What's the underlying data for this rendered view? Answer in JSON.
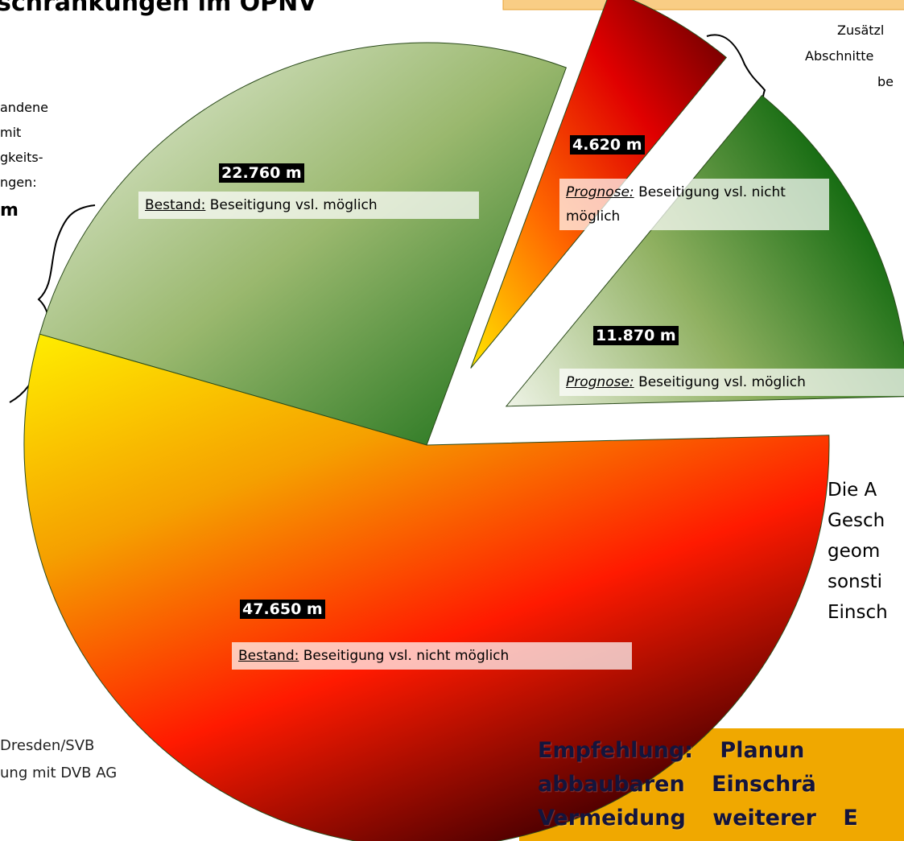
{
  "title": "schränkungen im ÖPNV",
  "left_note": [
    "andene",
    "mit",
    "gkeits-",
    "ngen:"
  ],
  "left_note_total": "m",
  "top_right_note": [
    "Zusätzl",
    "Abschnitte",
    "be"
  ],
  "right_note": [
    "Die A",
    "Gesch",
    "geom",
    "sonsti",
    "Einsch"
  ],
  "source_note": [
    "Dresden/SVB",
    "ung mit DVB AG"
  ],
  "recommendation": [
    "Empfehlung: Planun",
    "abbaubaren Einschrä",
    "Vermeidung weiterer E"
  ],
  "chart_data": {
    "type": "pie",
    "values": [
      22760,
      4620,
      11870,
      47650
    ],
    "value_labels": [
      "22.760 m",
      "4.620 m",
      "11.870 m",
      "47.650 m"
    ],
    "label_prefixes": [
      "Bestand:",
      "Prognose:",
      "Prognose:",
      "Bestand:"
    ],
    "categories": [
      "Beseitigung vsl. möglich",
      "Beseitigung vsl. nicht möglich",
      "Beseitigung vsl. möglich",
      "Beseitigung vsl. nicht möglich"
    ],
    "prefix_italic": [
      false,
      true,
      true,
      false
    ],
    "explode": [
      false,
      true,
      true,
      false
    ],
    "gradients": [
      [
        "#eaf1e2",
        "#9ab86e",
        "#126b12"
      ],
      [
        "#ffe600",
        "#ff6a00",
        "#e00000",
        "#5a0000"
      ],
      [
        "#eef3e6",
        "#8fb060",
        "#0b660b"
      ],
      [
        "#ffee00",
        "#f5a000",
        "#ff1a00",
        "#500000"
      ]
    ]
  }
}
